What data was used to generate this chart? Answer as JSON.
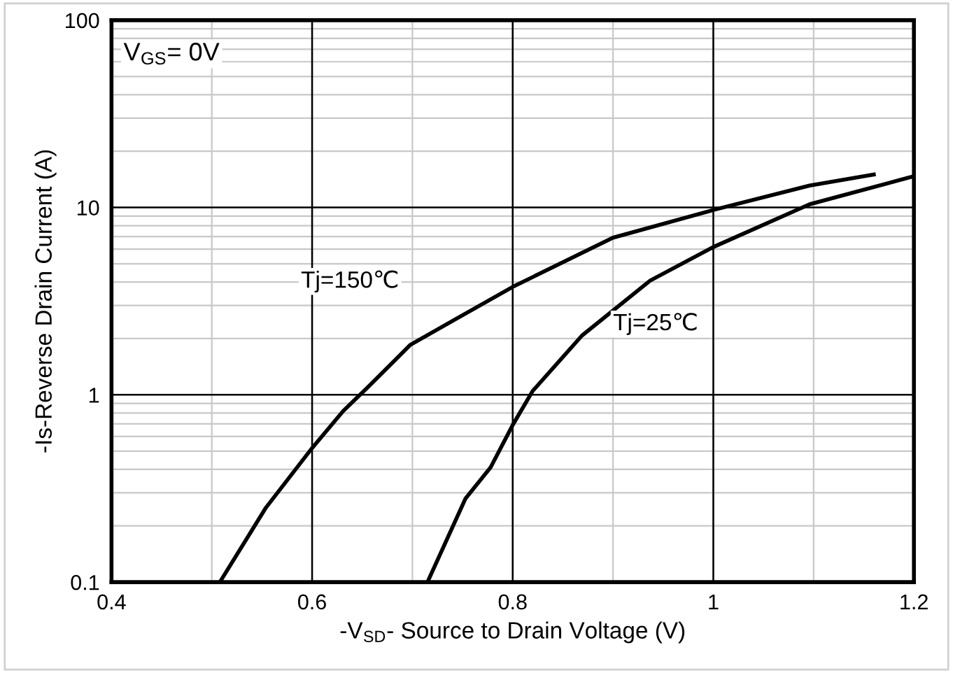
{
  "chart_data": {
    "type": "line",
    "xlabel": "-V$_{SD}$- Source to Drain Voltage (V)",
    "ylabel": "-Is-Reverse Drain Current (A)",
    "log": "y",
    "xlim": [
      0.4,
      1.2
    ],
    "ylim": [
      0.1,
      100
    ],
    "xticks": [
      0.4,
      0.6,
      0.8,
      1,
      1.2
    ],
    "yticks": [
      0.1,
      1,
      10,
      100
    ],
    "grid": true,
    "marker": "none",
    "line_style": "solid",
    "series": [
      {
        "name": "Tj=150℃",
        "color": "#000000",
        "x": [
          0.508,
          0.554,
          0.6,
          0.631,
          0.655,
          0.698,
          0.741,
          0.8,
          0.9,
          1.0,
          1.096,
          1.16
        ],
        "values": [
          0.1,
          0.25,
          0.52,
          0.82,
          1.09,
          1.85,
          2.5,
          3.77,
          6.9,
          9.7,
          13.1,
          15.0
        ]
      },
      {
        "name": "Tj=25℃",
        "color": "#000000",
        "x": [
          0.715,
          0.753,
          0.778,
          0.8,
          0.82,
          0.869,
          0.937,
          1.0,
          1.096,
          1.2
        ],
        "values": [
          0.1,
          0.28,
          0.41,
          0.69,
          1.05,
          2.07,
          4.07,
          6.15,
          10.4,
          14.7
        ]
      }
    ],
    "annotations": [
      "V$_{GS}$= 0V"
    ]
  }
}
